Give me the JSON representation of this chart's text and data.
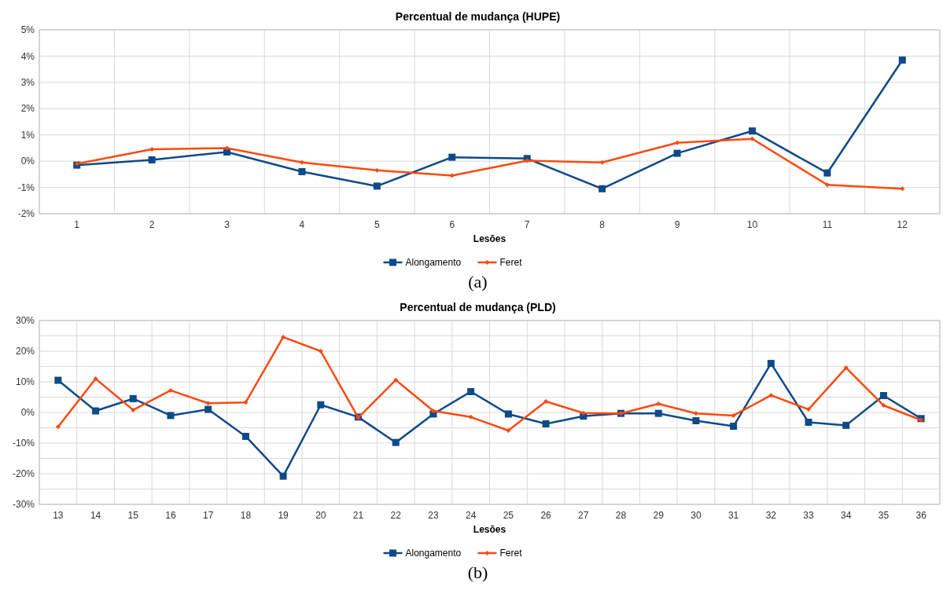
{
  "chart_data": [
    {
      "type": "line",
      "title": "Percentual de mudança (HUPE)",
      "xlabel": "Lesões",
      "categories": [
        "1",
        "2",
        "3",
        "4",
        "5",
        "6",
        "7",
        "8",
        "9",
        "10",
        "11",
        "12"
      ],
      "series": [
        {
          "name": "Alongamento",
          "color": "#0e4a8a",
          "marker": "square",
          "values": [
            -0.15,
            0.05,
            0.35,
            -0.4,
            -0.95,
            0.15,
            0.1,
            -1.05,
            0.3,
            1.15,
            -0.45,
            3.85
          ]
        },
        {
          "name": "Feret",
          "color": "#fc4a10",
          "marker": "diamond",
          "values": [
            -0.1,
            0.45,
            0.5,
            -0.05,
            -0.35,
            -0.55,
            0.02,
            -0.05,
            0.7,
            0.85,
            -0.9,
            -1.05
          ]
        }
      ],
      "ylim": [
        -2,
        5
      ],
      "yticks": [
        {
          "value": -2,
          "label": "-2%"
        },
        {
          "value": -1,
          "label": "-1%"
        },
        {
          "value": 0,
          "label": "0%"
        },
        {
          "value": 1,
          "label": "1%"
        },
        {
          "value": 2,
          "label": "2%"
        },
        {
          "value": 3,
          "label": "3%"
        },
        {
          "value": 4,
          "label": "4%"
        },
        {
          "value": 5,
          "label": "5%"
        }
      ],
      "grid": true,
      "legend": "bottom",
      "annotations": [
        "(a)"
      ]
    },
    {
      "type": "line",
      "title": "Percentual de mudança (PLD)",
      "xlabel": "Lesões",
      "categories": [
        "13",
        "14",
        "15",
        "16",
        "17",
        "18",
        "19",
        "20",
        "21",
        "22",
        "23",
        "24",
        "25",
        "26",
        "27",
        "28",
        "29",
        "30",
        "31",
        "32",
        "33",
        "34",
        "35",
        "36"
      ],
      "series": [
        {
          "name": "Alongamento",
          "color": "#0e4a8a",
          "marker": "square",
          "values": [
            10.5,
            0.5,
            4.5,
            -1,
            1,
            -7.8,
            -20.8,
            2.5,
            -1.5,
            -9.8,
            -0.5,
            6.8,
            -0.5,
            -3.7,
            -1.2,
            -0.3,
            -0.3,
            -2.7,
            -4.5,
            16,
            -3.2,
            -4.2,
            5.5,
            -2
          ]
        },
        {
          "name": "Feret",
          "color": "#fc4a10",
          "marker": "diamond",
          "values": [
            -4.7,
            11,
            0.8,
            7.2,
            3,
            3.3,
            24.6,
            20,
            -1.7,
            10.6,
            0.5,
            -1.5,
            -5.9,
            3.6,
            -0.2,
            -0.3,
            2.8,
            -0.3,
            -1,
            5.6,
            1,
            14.6,
            2.3,
            -2.5
          ]
        }
      ],
      "ylim": [
        -30,
        30
      ],
      "yticks": [
        {
          "value": -30,
          "label": "-30%"
        },
        {
          "value": -25,
          "label": null
        },
        {
          "value": -20,
          "label": "-20%"
        },
        {
          "value": -15,
          "label": null
        },
        {
          "value": -10,
          "label": "-10%"
        },
        {
          "value": -5,
          "label": null
        },
        {
          "value": 0,
          "label": "0%"
        },
        {
          "value": 5,
          "label": null
        },
        {
          "value": 10,
          "label": "10%"
        },
        {
          "value": 15,
          "label": null
        },
        {
          "value": 20,
          "label": "20%"
        },
        {
          "value": 25,
          "label": null
        },
        {
          "value": 30,
          "label": "30%"
        }
      ],
      "grid": true,
      "legend": "bottom",
      "annotations": [
        "(b)"
      ]
    }
  ]
}
